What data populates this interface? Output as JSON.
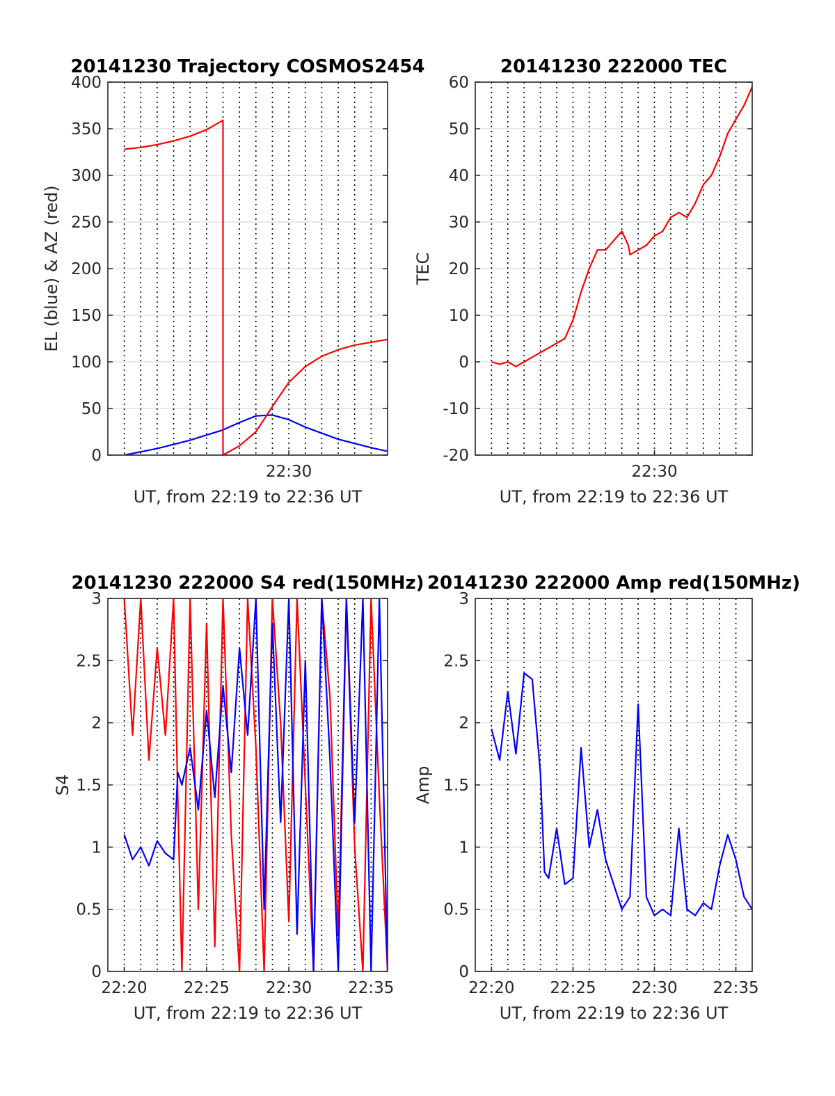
{
  "chart_data": [
    {
      "id": "trajectory",
      "type": "line",
      "title": "20141230 Trajectory COSMOS2454",
      "xlabel": "UT, from 22:19 to 22:36 UT",
      "ylabel": "EL (blue) & AZ (red)",
      "xlim": [
        22.3167,
        22.6
      ],
      "ylim": [
        0,
        400
      ],
      "yticks": [
        "0",
        "50",
        "100",
        "150",
        "200",
        "250",
        "300",
        "350",
        "400"
      ],
      "xticks": [
        {
          "value": 22.5,
          "label": "22:30"
        }
      ],
      "grid": true,
      "colors": {
        "EL": "#0000ff",
        "AZ": "#ff0000"
      },
      "series": [
        {
          "name": "EL",
          "color": "#0000ff",
          "x": [
            22.3333,
            22.3667,
            22.4,
            22.4333,
            22.45,
            22.4667,
            22.4833,
            22.5,
            22.5167,
            22.55,
            22.5833,
            22.6
          ],
          "y": [
            0,
            7,
            16,
            27,
            35,
            42,
            43,
            38,
            30,
            17,
            8,
            4
          ]
        },
        {
          "name": "AZ",
          "color": "#ff0000",
          "x": [
            22.3333,
            22.35,
            22.3667,
            22.3833,
            22.4,
            22.4167,
            22.4333,
            22.4333,
            22.45,
            22.4667,
            22.4833,
            22.5,
            22.5167,
            22.5333,
            22.55,
            22.5667,
            22.6
          ],
          "y": [
            328,
            330,
            333,
            337,
            342,
            349,
            359,
            0,
            10,
            25,
            52,
            78,
            95,
            106,
            113,
            118,
            124
          ]
        }
      ]
    },
    {
      "id": "tec",
      "type": "line",
      "title": "20141230 222000 TEC",
      "xlabel": "UT, from 22:19 to 22:36 UT",
      "ylabel": "TEC",
      "xlim": [
        22.3167,
        22.6
      ],
      "ylim": [
        -20,
        60
      ],
      "yticks": [
        "-20",
        "-10",
        "0",
        "10",
        "20",
        "30",
        "40",
        "50",
        "60"
      ],
      "xticks": [
        {
          "value": 22.5,
          "label": "22:30"
        }
      ],
      "grid": true,
      "colors": {
        "TEC": "#ff0000"
      },
      "series": [
        {
          "name": "TEC",
          "color": "#ff0000",
          "x": [
            22.3333,
            22.3417,
            22.35,
            22.3583,
            22.3667,
            22.375,
            22.3833,
            22.3917,
            22.4,
            22.4083,
            22.4167,
            22.425,
            22.4333,
            22.4417,
            22.45,
            22.4583,
            22.4667,
            22.4733,
            22.475,
            22.4833,
            22.4917,
            22.5,
            22.5083,
            22.5167,
            22.525,
            22.5333,
            22.5417,
            22.55,
            22.5583,
            22.5667,
            22.575,
            22.5833,
            22.5917,
            22.6
          ],
          "y": [
            0,
            -0.5,
            0,
            -1,
            0,
            1,
            2,
            3,
            4,
            5,
            9,
            15,
            20,
            24,
            24,
            26,
            28,
            25,
            23,
            24,
            25,
            27,
            28,
            31,
            32,
            31,
            34,
            38,
            40,
            44,
            49,
            52,
            55,
            59
          ]
        }
      ]
    },
    {
      "id": "s4",
      "type": "line",
      "title": "20141230 222000 S4 red(150MHz)",
      "xlabel": "UT, from 22:19 to 22:36 UT",
      "ylabel": "S4",
      "xlim": [
        22.3167,
        22.6
      ],
      "ylim": [
        0,
        3
      ],
      "yticks": [
        "0",
        "0.5",
        "1",
        "1.5",
        "2",
        "2.5",
        "3"
      ],
      "xticks": [
        {
          "value": 22.3333,
          "label": "22:20"
        },
        {
          "value": 22.4167,
          "label": "22:25"
        },
        {
          "value": 22.5,
          "label": "22:30"
        },
        {
          "value": 22.5833,
          "label": "22:35"
        }
      ],
      "grid": true,
      "colors": {
        "red": "#ff0000",
        "blue": "#0000ff"
      },
      "series": [
        {
          "name": "red",
          "color": "#ff0000",
          "x": [
            22.3333,
            22.3417,
            22.35,
            22.3583,
            22.3667,
            22.375,
            22.3833,
            22.3875,
            22.3917,
            22.4,
            22.4083,
            22.4167,
            22.425,
            22.4333,
            22.4417,
            22.45,
            22.4583,
            22.4667,
            22.475,
            22.4833,
            22.4917,
            22.5,
            22.5083,
            22.5167,
            22.525,
            22.5333,
            22.5417,
            22.55,
            22.5583,
            22.5667,
            22.575,
            22.5833,
            22.5917,
            22.6
          ],
          "y": [
            3,
            1.9,
            3,
            1.7,
            2.6,
            1.9,
            3,
            1.4,
            0,
            3,
            0.5,
            2.8,
            0.2,
            3,
            1.1,
            0,
            3,
            1.8,
            0,
            3,
            2,
            0.4,
            3,
            1.5,
            0,
            3,
            2.2,
            0.3,
            3,
            1,
            0,
            3,
            1.4,
            0
          ]
        },
        {
          "name": "blue",
          "color": "#0000ff",
          "x": [
            22.3333,
            22.3417,
            22.35,
            22.3583,
            22.3667,
            22.375,
            22.3833,
            22.3875,
            22.3917,
            22.4,
            22.4083,
            22.4167,
            22.425,
            22.4333,
            22.4417,
            22.45,
            22.4583,
            22.4667,
            22.475,
            22.4833,
            22.4917,
            22.5,
            22.5083,
            22.5167,
            22.525,
            22.5333,
            22.5417,
            22.55,
            22.5583,
            22.5667,
            22.575,
            22.5833,
            22.5917,
            22.6
          ],
          "y": [
            1.1,
            0.9,
            1.0,
            0.85,
            1.05,
            0.95,
            0.9,
            1.6,
            1.5,
            1.8,
            1.3,
            2.1,
            1.4,
            2.3,
            1.6,
            2.6,
            1.9,
            3,
            0.5,
            2.8,
            1.2,
            3,
            0.3,
            2.5,
            0,
            3,
            1.7,
            0,
            3,
            1.2,
            3,
            0,
            3,
            0
          ]
        }
      ]
    },
    {
      "id": "amp",
      "type": "line",
      "title": "20141230 222000 Amp red(150MHz)",
      "xlabel": "UT, from 22:19 to 22:36 UT",
      "ylabel": "Amp",
      "xlim": [
        22.3167,
        22.6
      ],
      "ylim": [
        0,
        3
      ],
      "yticks": [
        "0",
        "0.5",
        "1",
        "1.5",
        "2",
        "2.5",
        "3"
      ],
      "xticks": [
        {
          "value": 22.3333,
          "label": "22:20"
        },
        {
          "value": 22.4167,
          "label": "22:25"
        },
        {
          "value": 22.5,
          "label": "22:30"
        },
        {
          "value": 22.5833,
          "label": "22:35"
        }
      ],
      "grid": true,
      "colors": {
        "Amp": "#0000ff"
      },
      "series": [
        {
          "name": "Amp",
          "color": "#0000ff",
          "x": [
            22.3333,
            22.3417,
            22.35,
            22.3583,
            22.3667,
            22.375,
            22.3833,
            22.3875,
            22.3917,
            22.4,
            22.4083,
            22.4167,
            22.425,
            22.4333,
            22.4417,
            22.45,
            22.4583,
            22.4667,
            22.475,
            22.4833,
            22.4917,
            22.5,
            22.5083,
            22.5167,
            22.525,
            22.5333,
            22.5417,
            22.55,
            22.5583,
            22.5667,
            22.575,
            22.5833,
            22.5917,
            22.6
          ],
          "y": [
            1.95,
            1.7,
            2.25,
            1.75,
            2.4,
            2.35,
            1.6,
            0.8,
            0.75,
            1.15,
            0.7,
            0.75,
            1.8,
            1.0,
            1.3,
            0.9,
            0.7,
            0.5,
            0.6,
            2.15,
            0.6,
            0.45,
            0.5,
            0.45,
            1.15,
            0.5,
            0.45,
            0.55,
            0.5,
            0.85,
            1.1,
            0.9,
            0.6,
            0.5
          ]
        }
      ]
    }
  ]
}
